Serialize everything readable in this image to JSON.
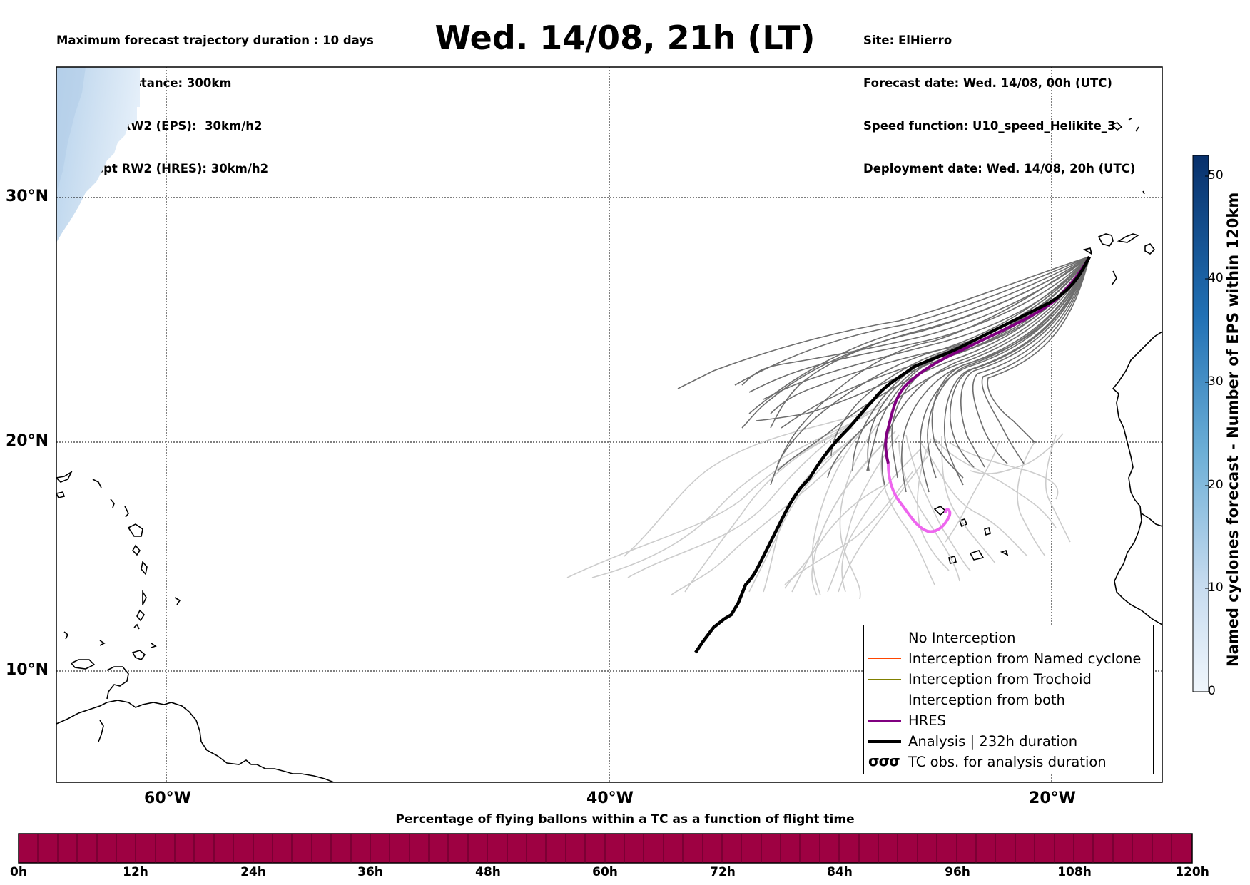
{
  "header": {
    "left_lines": [
      "Maximum forecast trajectory duration : 10 days",
      "Intercept distance: 300km",
      "Intercept RW2 (EPS):  30km/h2",
      "Intercept RW2 (HRES): 30km/h2"
    ],
    "title": "Wed. 14/08, 21h (LT)",
    "right_lines": [
      "Site: ElHierro",
      "Forecast date: Wed. 14/08, 00h (UTC)",
      "Speed function: U10_speed_Helikite_3",
      "Deployment date: Wed. 14/08, 20h (UTC)"
    ]
  },
  "map": {
    "lat_labels": [
      "30°N",
      "20°N",
      "10°N"
    ],
    "lon_labels": [
      "60°W",
      "40°W",
      "20°W"
    ],
    "colors": {
      "no_interception": "#808080",
      "named_cyclone": "#ff4500",
      "trochoid": "#808000",
      "both": "#008000",
      "hres": "#800080",
      "hres_tail": "#ee66ee",
      "analysis": "#000000",
      "light_track": "#cccccc",
      "cyclone_field": "#cfe1f2"
    }
  },
  "legend": {
    "items": [
      {
        "label": "No Interception",
        "color": "#808080",
        "style": "thin"
      },
      {
        "label": "Interception from Named cyclone",
        "color": "#ff4500",
        "style": "thin"
      },
      {
        "label": "Interception from Trochoid",
        "color": "#808000",
        "style": "thin"
      },
      {
        "label": "Interception from both",
        "color": "#008000",
        "style": "thin"
      },
      {
        "label": "HRES",
        "color": "#800080",
        "style": "thick"
      },
      {
        "label": "Analysis | 232h duration",
        "color": "#000000",
        "style": "thick"
      },
      {
        "label": "TC obs. for analysis duration",
        "color": "#000000",
        "style": "symbol",
        "symbol": "σσσ"
      }
    ]
  },
  "colorbar": {
    "label": "Named cyclones forecast - Number of EPS within 120km",
    "ticks": [
      "50",
      "40",
      "30",
      "20",
      "10",
      "0"
    ],
    "color_low": "#f0f6fc",
    "color_high": "#08306b"
  },
  "time_bar": {
    "title": "Percentage of flying ballons within a TC as a function of flight time",
    "ticks": [
      "0h",
      "12h",
      "24h",
      "36h",
      "48h",
      "60h",
      "72h",
      "84h",
      "96h",
      "108h",
      "120h"
    ],
    "fill_color": "#9e0142"
  }
}
